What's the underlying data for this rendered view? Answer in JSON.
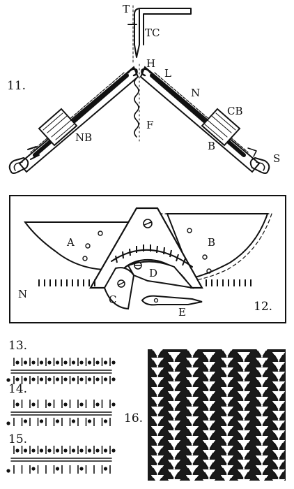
{
  "figures": [
    {
      "number": "11.",
      "labels": {
        "T": "T",
        "TC": "TC",
        "H": "H",
        "L": "L",
        "N": "N",
        "CB": "CB",
        "NB": "NB",
        "F": "F",
        "B": "B",
        "S": "S"
      }
    },
    {
      "number": "12.",
      "labels": {
        "A": "A",
        "B": "B",
        "C": "C",
        "D": "D",
        "E": "E",
        "N": "N"
      }
    },
    {
      "number": "13."
    },
    {
      "number": "14."
    },
    {
      "number": "15."
    },
    {
      "number": "16."
    }
  ]
}
